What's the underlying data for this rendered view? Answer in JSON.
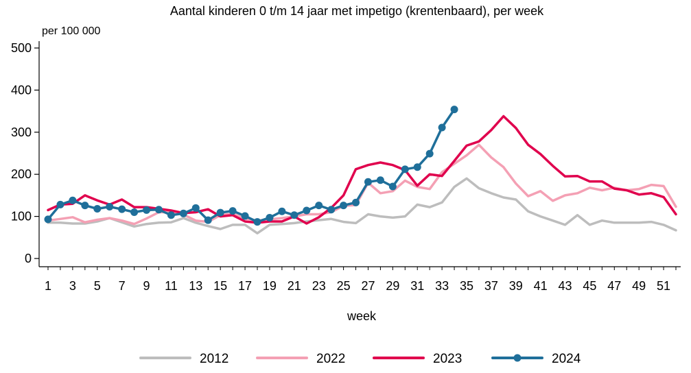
{
  "chart_data": {
    "type": "line",
    "title": "Aantal kinderen 0 t/m 14 jaar met impetigo (krentenbaard), per week",
    "ylabel": "per 100 000",
    "xlabel": "week",
    "ylim": [
      0,
      500
    ],
    "xlim": [
      1,
      52
    ],
    "y_ticks": [
      0,
      100,
      200,
      300,
      400,
      500
    ],
    "x_ticks": [
      1,
      3,
      5,
      7,
      9,
      11,
      13,
      15,
      17,
      19,
      21,
      23,
      25,
      27,
      29,
      31,
      33,
      35,
      37,
      39,
      41,
      43,
      45,
      47,
      49,
      51
    ],
    "grid": false,
    "legend_position": "bottom",
    "series": [
      {
        "name": "2012",
        "color": "#bdbdbd",
        "markers": false,
        "x": [
          1,
          2,
          3,
          4,
          5,
          6,
          7,
          8,
          9,
          10,
          11,
          12,
          13,
          14,
          15,
          16,
          17,
          18,
          19,
          20,
          21,
          22,
          23,
          24,
          25,
          26,
          27,
          28,
          29,
          30,
          31,
          32,
          33,
          34,
          35,
          36,
          37,
          38,
          39,
          40,
          41,
          42,
          43,
          44,
          45,
          46,
          47,
          48,
          49,
          50,
          51,
          52
        ],
        "values": [
          85,
          85,
          83,
          83,
          88,
          96,
          86,
          76,
          82,
          85,
          86,
          96,
          85,
          77,
          70,
          80,
          80,
          60,
          80,
          82,
          84,
          88,
          91,
          94,
          87,
          84,
          105,
          100,
          97,
          100,
          128,
          122,
          133,
          170,
          190,
          167,
          155,
          145,
          140,
          112,
          100,
          90,
          80,
          103,
          80,
          90,
          85,
          85,
          85,
          87,
          80,
          67
        ]
      },
      {
        "name": "2022",
        "color": "#f4a0b4",
        "markers": false,
        "x": [
          1,
          2,
          3,
          4,
          5,
          6,
          7,
          8,
          9,
          10,
          11,
          12,
          13,
          14,
          15,
          16,
          17,
          18,
          19,
          20,
          21,
          22,
          23,
          24,
          25,
          26,
          27,
          28,
          29,
          30,
          31,
          32,
          33,
          34,
          35,
          36,
          37,
          38,
          39,
          40,
          41,
          42,
          43,
          44,
          45,
          46,
          47,
          48,
          49,
          50,
          51,
          52
        ],
        "values": [
          90,
          94,
          98,
          86,
          92,
          96,
          90,
          82,
          95,
          110,
          110,
          104,
          90,
          87,
          103,
          106,
          95,
          90,
          93,
          96,
          100,
          105,
          105,
          110,
          125,
          127,
          180,
          155,
          160,
          185,
          170,
          165,
          205,
          225,
          245,
          270,
          240,
          217,
          178,
          148,
          160,
          137,
          150,
          155,
          168,
          162,
          168,
          162,
          165,
          175,
          172,
          123
        ]
      },
      {
        "name": "2023",
        "color": "#e0004d",
        "markers": false,
        "x": [
          1,
          2,
          3,
          4,
          5,
          6,
          7,
          8,
          9,
          10,
          11,
          12,
          13,
          14,
          15,
          16,
          17,
          18,
          19,
          20,
          21,
          22,
          23,
          24,
          25,
          26,
          27,
          28,
          29,
          30,
          31,
          32,
          33,
          34,
          35,
          36,
          37,
          38,
          39,
          40,
          41,
          42,
          43,
          44,
          45,
          46,
          47,
          48,
          49,
          50,
          51,
          52
        ],
        "values": [
          115,
          128,
          130,
          150,
          138,
          128,
          140,
          122,
          122,
          118,
          114,
          108,
          110,
          117,
          100,
          103,
          88,
          85,
          88,
          88,
          100,
          83,
          98,
          120,
          150,
          212,
          222,
          228,
          222,
          210,
          173,
          200,
          196,
          232,
          268,
          278,
          305,
          338,
          310,
          270,
          248,
          220,
          195,
          196,
          183,
          183,
          166,
          162,
          152,
          155,
          146,
          105
        ]
      },
      {
        "name": "2024",
        "color": "#1f6f9a",
        "markers": true,
        "x": [
          1,
          2,
          3,
          4,
          5,
          6,
          7,
          8,
          9,
          10,
          11,
          12,
          13,
          14,
          15,
          16,
          17,
          18,
          19,
          20,
          21,
          22,
          23,
          24,
          25,
          26,
          27,
          28,
          29,
          30,
          31,
          32,
          33,
          34
        ],
        "values": [
          93,
          128,
          138,
          126,
          118,
          123,
          117,
          110,
          115,
          116,
          103,
          107,
          120,
          91,
          109,
          113,
          101,
          87,
          97,
          112,
          103,
          114,
          126,
          116,
          126,
          133,
          182,
          186,
          171,
          212,
          217,
          249,
          311,
          354
        ]
      }
    ]
  }
}
